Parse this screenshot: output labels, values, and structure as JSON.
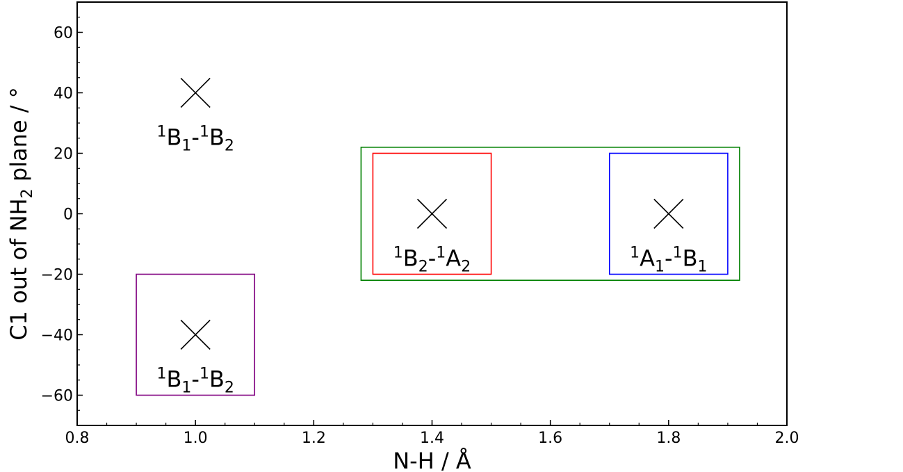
{
  "chart_data": {
    "type": "scatter",
    "title": "",
    "xlabel": "N-H / Å",
    "ylabel": {
      "main": "C1 out of NH",
      "sub": "2",
      "tail": " plane / °"
    },
    "xlim": [
      0.8,
      2.0
    ],
    "ylim": [
      -70,
      70
    ],
    "xticks": [
      0.8,
      1.0,
      1.2,
      1.4,
      1.6,
      1.8,
      2.0
    ],
    "xtick_labels": [
      "0.8",
      "1.0",
      "1.2",
      "1.4",
      "1.6",
      "1.8",
      "2.0"
    ],
    "yticks": [
      -60,
      -40,
      -20,
      0,
      20,
      40,
      60
    ],
    "ytick_labels": [
      "−60",
      "−40",
      "−20",
      "0",
      "20",
      "40",
      "60"
    ],
    "x_minor_step": 0.05,
    "y_minor_step": 5,
    "grid": false,
    "marker": "x",
    "points": [
      {
        "x": 1.0,
        "y": 40
      },
      {
        "x": 1.4,
        "y": 0
      },
      {
        "x": 1.8,
        "y": 0
      },
      {
        "x": 1.0,
        "y": -40
      }
    ],
    "annotations": [
      {
        "x": 1.0,
        "y": 40,
        "parts": [
          [
            "sup",
            "1"
          ],
          [
            "base",
            "B"
          ],
          [
            "sub",
            "1"
          ],
          [
            "base",
            "-"
          ],
          [
            "sup",
            "1"
          ],
          [
            "base",
            "B"
          ],
          [
            "sub",
            "2"
          ]
        ]
      },
      {
        "x": 1.4,
        "y": 0,
        "parts": [
          [
            "sup",
            "1"
          ],
          [
            "base",
            "B"
          ],
          [
            "sub",
            "2"
          ],
          [
            "base",
            "-"
          ],
          [
            "sup",
            "1"
          ],
          [
            "base",
            "A"
          ],
          [
            "sub",
            "2"
          ]
        ]
      },
      {
        "x": 1.8,
        "y": 0,
        "parts": [
          [
            "sup",
            "1"
          ],
          [
            "base",
            "A"
          ],
          [
            "sub",
            "1"
          ],
          [
            "base",
            "-"
          ],
          [
            "sup",
            "1"
          ],
          [
            "base",
            "B"
          ],
          [
            "sub",
            "1"
          ]
        ]
      },
      {
        "x": 1.0,
        "y": -40,
        "parts": [
          [
            "sup",
            "1"
          ],
          [
            "base",
            "B"
          ],
          [
            "sub",
            "1"
          ],
          [
            "base",
            "-"
          ],
          [
            "sup",
            "1"
          ],
          [
            "base",
            "B"
          ],
          [
            "sub",
            "2"
          ]
        ]
      }
    ],
    "boxes": [
      {
        "name": "purple",
        "x0": 0.9,
        "x1": 1.1,
        "y0": -60,
        "y1": -20,
        "color": "#800080"
      },
      {
        "name": "green",
        "x0": 1.28,
        "x1": 1.92,
        "y0": -22,
        "y1": 22,
        "color": "#008000"
      },
      {
        "name": "red",
        "x0": 1.3,
        "x1": 1.5,
        "y0": -20,
        "y1": 20,
        "color": "#ff0000"
      },
      {
        "name": "blue",
        "x0": 1.7,
        "x1": 1.9,
        "y0": -20,
        "y1": 20,
        "color": "#0000ff"
      }
    ]
  }
}
